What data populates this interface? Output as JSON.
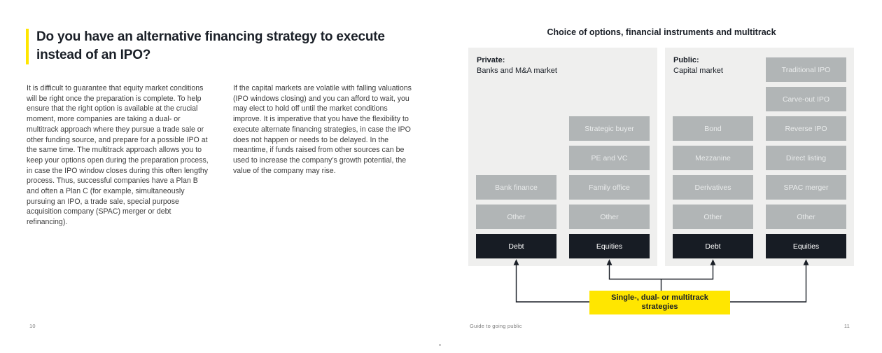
{
  "colors": {
    "accent_yellow": "#ffe600",
    "panel_bg": "#efefee",
    "gray_box": "#b1b5b6",
    "dark_box": "#171c24",
    "arrow": "#1a1f27"
  },
  "left_page": {
    "heading": "Do you have an alternative financing strategy to execute instead of an IPO?",
    "paragraphs": [
      "It is difficult to guarantee that equity market conditions will be right once the preparation is complete. To help ensure that the right option is available at the crucial moment, more companies are taking a dual- or multitrack approach where they pursue a trade sale or other funding source, and prepare for a possible IPO at the same time. The multitrack approach allows you to keep your options open during the preparation process, in case the IPO window closes during this often lengthy process. Thus, successful companies have a Plan B and often a Plan C (for example, simultaneously pursuing an IPO, a trade sale, special purpose acquisition company (SPAC) merger or debt refinancing).",
      "If the capital markets are volatile with falling valuations (IPO windows closing) and you can afford to wait, you may elect to hold off until the market conditions improve. It is imperative that you have the flexibility to execute alternate financing strategies, in case the IPO does not happen or needs to be delayed. In the meantime, if funds raised from other sources can be used to increase the company’s growth potential, the value of the company may rise."
    ],
    "page_number": "10"
  },
  "right_page": {
    "diagram_title": "Choice of options, financial instruments and multitrack",
    "panels": [
      {
        "id": "private",
        "title_bold": "Private:",
        "title_rest": "Banks and M&A market",
        "columns": [
          {
            "boxes": [
              {
                "label": "Bank finance",
                "type": "gray"
              },
              {
                "label": "Other",
                "type": "gray"
              },
              {
                "label": "Debt",
                "type": "dark"
              }
            ]
          },
          {
            "boxes": [
              {
                "label": "Strategic buyer",
                "type": "gray"
              },
              {
                "label": "PE and VC",
                "type": "gray"
              },
              {
                "label": "Family office",
                "type": "gray"
              },
              {
                "label": "Other",
                "type": "gray"
              },
              {
                "label": "Equities",
                "type": "dark"
              }
            ]
          }
        ]
      },
      {
        "id": "public",
        "title_bold": "Public:",
        "title_rest": "Capital market",
        "columns": [
          {
            "boxes": [
              {
                "label": "Bond",
                "type": "gray"
              },
              {
                "label": "Mezzanine",
                "type": "gray"
              },
              {
                "label": "Derivatives",
                "type": "gray"
              },
              {
                "label": "Other",
                "type": "gray"
              },
              {
                "label": "Debt",
                "type": "dark"
              }
            ]
          },
          {
            "boxes": [
              {
                "label": "Traditional IPO",
                "type": "gray"
              },
              {
                "label": "Carve-out IPO",
                "type": "gray"
              },
              {
                "label": "Reverse IPO",
                "type": "gray"
              },
              {
                "label": "Direct listing",
                "type": "gray"
              },
              {
                "label": "SPAC merger",
                "type": "gray"
              },
              {
                "label": "Other",
                "type": "gray"
              },
              {
                "label": "Equities",
                "type": "dark"
              }
            ]
          }
        ]
      }
    ],
    "strategy_box_label": "Single-, dual- or multitrack strategies",
    "footer_text": "Guide to going public",
    "page_number": "11"
  }
}
